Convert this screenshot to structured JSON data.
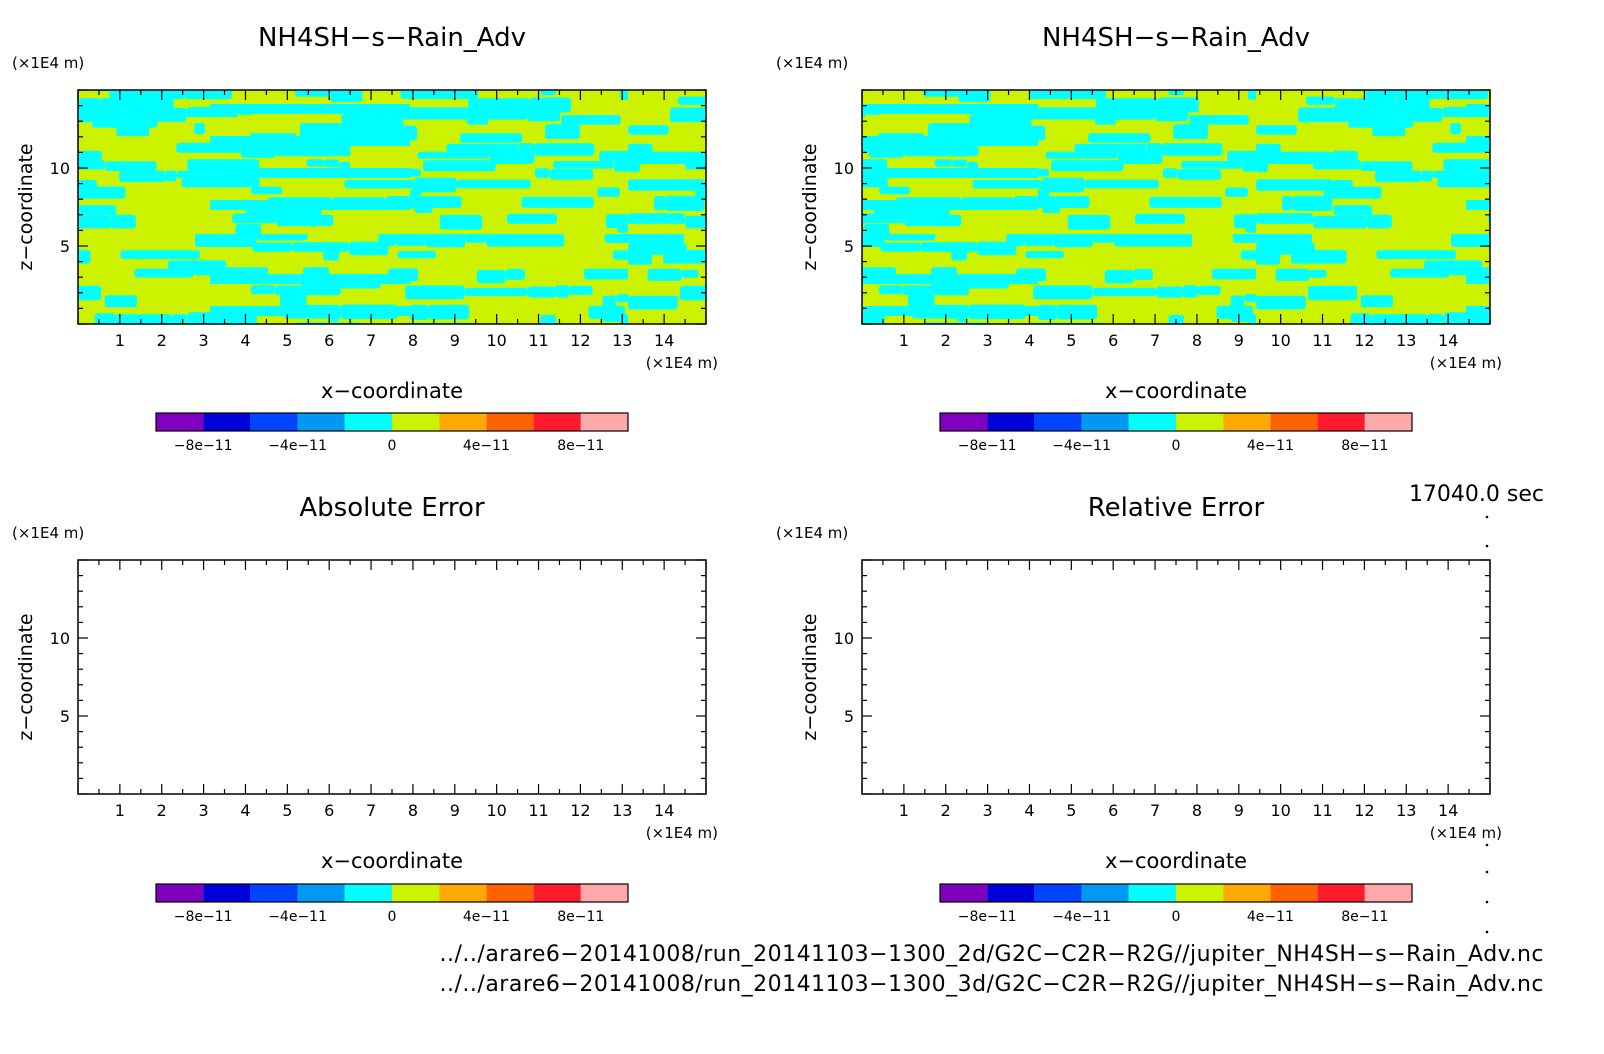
{
  "chart_data": [
    {
      "type": "heatmap",
      "title": "NH4SH−s−Rain_Adv",
      "xlabel": "x−coordinate",
      "ylabel": "z−coordinate",
      "x_unit": "(×1E4 m)",
      "z_unit": "(×1E4 m)",
      "x_ticks": [
        "1",
        "2",
        "3",
        "4",
        "5",
        "6",
        "7",
        "8",
        "9",
        "10",
        "11",
        "12",
        "13",
        "14"
      ],
      "z_ticks": [
        "5",
        "10"
      ],
      "xlim": [
        0,
        15
      ],
      "zlim": [
        0,
        15
      ],
      "field": "alternating bands of values near 0 (cyan) and slightly positive (yellow-green)",
      "filled": true
    },
    {
      "type": "heatmap",
      "title": "NH4SH−s−Rain_Adv",
      "xlabel": "x−coordinate",
      "ylabel": "z−coordinate",
      "x_unit": "(×1E4 m)",
      "z_unit": "(×1E4 m)",
      "x_ticks": [
        "1",
        "2",
        "3",
        "4",
        "5",
        "6",
        "7",
        "8",
        "9",
        "10",
        "11",
        "12",
        "13",
        "14"
      ],
      "z_ticks": [
        "5",
        "10"
      ],
      "xlim": [
        0,
        15
      ],
      "zlim": [
        0,
        15
      ],
      "field": "alternating bands of values near 0 (cyan) and slightly positive (yellow-green)",
      "filled": true
    },
    {
      "type": "heatmap",
      "title": "Absolute Error",
      "xlabel": "x−coordinate",
      "ylabel": "z−coordinate",
      "x_unit": "(×1E4 m)",
      "z_unit": "(×1E4 m)",
      "x_ticks": [
        "1",
        "2",
        "3",
        "4",
        "5",
        "6",
        "7",
        "8",
        "9",
        "10",
        "11",
        "12",
        "13",
        "14"
      ],
      "z_ticks": [
        "5",
        "10"
      ],
      "xlim": [
        0,
        15
      ],
      "zlim": [
        0,
        15
      ],
      "filled": false
    },
    {
      "type": "heatmap",
      "title": "Relative Error",
      "xlabel": "x−coordinate",
      "ylabel": "z−coordinate",
      "x_unit": "(×1E4 m)",
      "z_unit": "(×1E4 m)",
      "x_ticks": [
        "1",
        "2",
        "3",
        "4",
        "5",
        "6",
        "7",
        "8",
        "9",
        "10",
        "11",
        "12",
        "13",
        "14"
      ],
      "z_ticks": [
        "5",
        "10"
      ],
      "xlim": [
        0,
        15
      ],
      "zlim": [
        0,
        15
      ],
      "filled": false
    }
  ],
  "colorbar": {
    "colors": [
      "#7f00bf",
      "#0000d8",
      "#0044ff",
      "#0099f2",
      "#00ffff",
      "#ccf200",
      "#ffaa00",
      "#ff6200",
      "#ff1a2e",
      "#ffaaaa"
    ],
    "labels": [
      "−8e−11",
      "−4e−11",
      "0",
      "4e−11",
      "8e−11"
    ],
    "label_after_segment": [
      1,
      3,
      5,
      7,
      9
    ]
  },
  "band_colors": {
    "low": "#00ffff",
    "high": "#ccf200"
  },
  "time_label": "17040.0 sec",
  "footer": [
    "../../arare6−20141008/run_20141103−1300_2d/G2C−C2R−R2G//jupiter_NH4SH−s−Rain_Adv.nc",
    "../../arare6−20141008/run_20141103−1300_3d/G2C−C2R−R2G//jupiter_NH4SH−s−Rain_Adv.nc"
  ]
}
